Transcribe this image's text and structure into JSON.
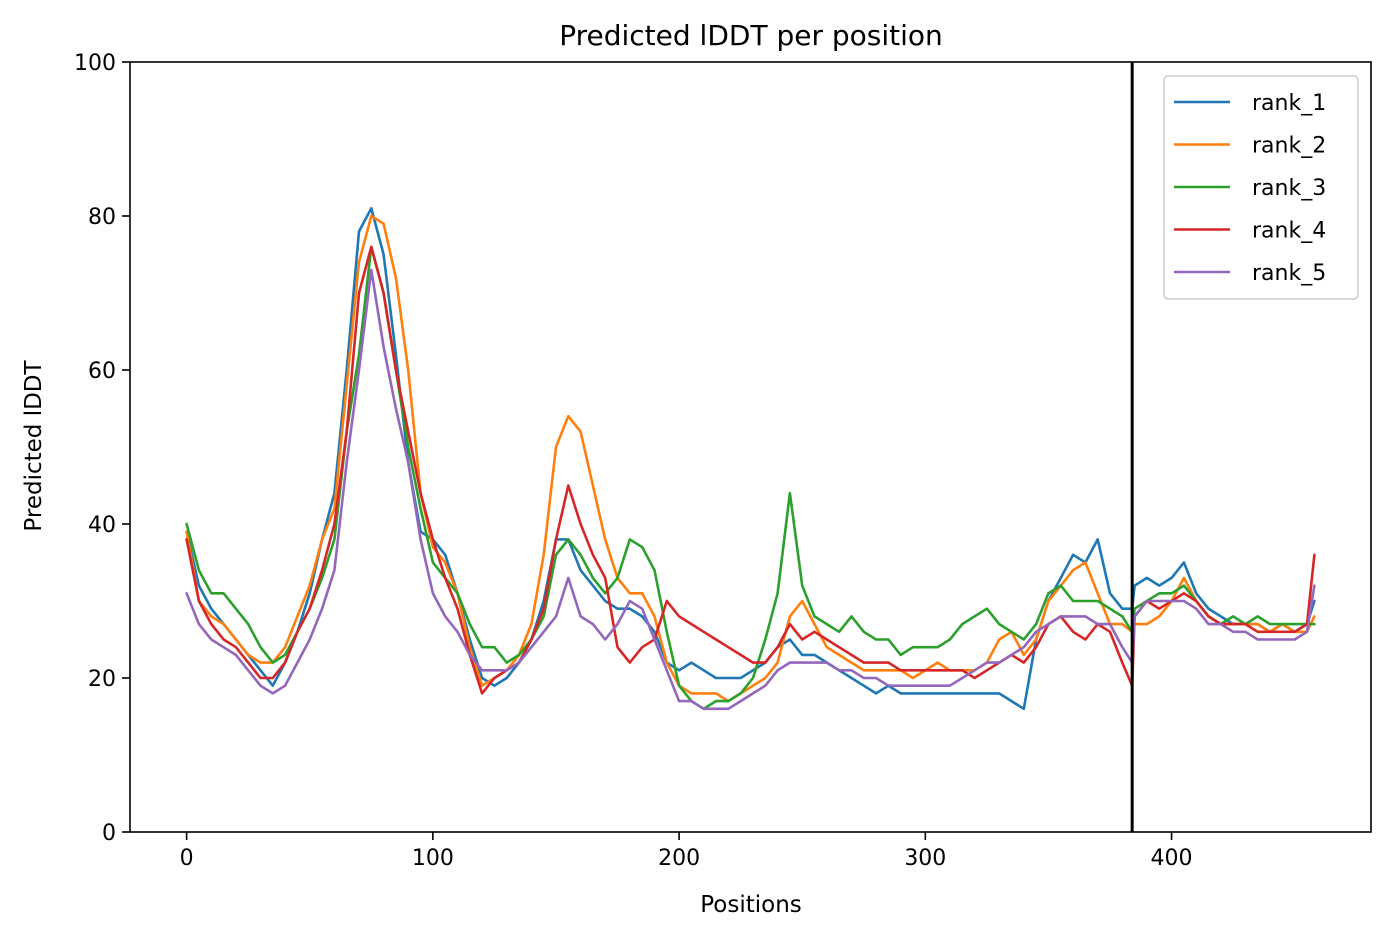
{
  "chart_data": {
    "type": "line",
    "title": "Predicted lDDT per position",
    "xlabel": "Positions",
    "ylabel": "Predicted lDDT",
    "xlim": [
      -23,
      481
    ],
    "ylim": [
      0,
      100
    ],
    "xticks": [
      0,
      100,
      200,
      300,
      400
    ],
    "yticks": [
      0,
      20,
      40,
      60,
      80,
      100
    ],
    "grid": false,
    "legend_position": "top-right",
    "vertical_line": {
      "x": 384,
      "color": "#000000"
    },
    "series": [
      {
        "name": "rank_1",
        "color": "#1f77b4",
        "x": [
          0,
          5,
          10,
          15,
          20,
          25,
          30,
          35,
          40,
          45,
          50,
          55,
          60,
          65,
          70,
          75,
          80,
          85,
          90,
          95,
          100,
          105,
          110,
          115,
          120,
          125,
          130,
          135,
          140,
          145,
          150,
          155,
          160,
          165,
          170,
          175,
          180,
          185,
          190,
          195,
          200,
          205,
          210,
          215,
          220,
          225,
          230,
          235,
          240,
          245,
          250,
          255,
          260,
          265,
          270,
          275,
          280,
          285,
          290,
          295,
          300,
          305,
          310,
          315,
          320,
          325,
          330,
          335,
          340,
          345,
          350,
          355,
          360,
          365,
          370,
          375,
          380,
          384,
          385,
          390,
          395,
          400,
          405,
          410,
          415,
          420,
          425,
          430,
          435,
          440,
          445,
          450,
          455,
          458
        ],
        "y": [
          39,
          32,
          29,
          27,
          25,
          23,
          21,
          19,
          22,
          26,
          31,
          38,
          44,
          60,
          78,
          81,
          75,
          62,
          48,
          39,
          38,
          36,
          31,
          25,
          20,
          19,
          20,
          22,
          25,
          30,
          38,
          38,
          34,
          32,
          30,
          29,
          29,
          28,
          26,
          22,
          21,
          22,
          21,
          20,
          20,
          20,
          21,
          22,
          24,
          25,
          23,
          23,
          22,
          21,
          20,
          19,
          18,
          19,
          18,
          18,
          18,
          18,
          18,
          18,
          18,
          18,
          18,
          17,
          16,
          25,
          30,
          33,
          36,
          35,
          38,
          31,
          29,
          29,
          32,
          33,
          32,
          33,
          35,
          31,
          29,
          28,
          27,
          27,
          27,
          26,
          27,
          26,
          27,
          30
        ]
      },
      {
        "name": "rank_2",
        "color": "#ff7f0e",
        "x": [
          0,
          5,
          10,
          15,
          20,
          25,
          30,
          35,
          40,
          45,
          50,
          55,
          60,
          65,
          70,
          75,
          80,
          85,
          90,
          95,
          100,
          105,
          110,
          115,
          120,
          125,
          130,
          135,
          140,
          145,
          150,
          155,
          160,
          165,
          170,
          175,
          180,
          185,
          190,
          195,
          200,
          205,
          210,
          215,
          220,
          225,
          230,
          235,
          240,
          245,
          250,
          255,
          260,
          265,
          270,
          275,
          280,
          285,
          290,
          295,
          300,
          305,
          310,
          315,
          320,
          325,
          330,
          335,
          340,
          345,
          350,
          355,
          360,
          365,
          370,
          375,
          380,
          384,
          385,
          390,
          395,
          400,
          405,
          410,
          415,
          420,
          425,
          430,
          435,
          440,
          445,
          450,
          455,
          458
        ],
        "y": [
          39,
          30,
          28,
          27,
          25,
          23,
          22,
          22,
          24,
          28,
          32,
          38,
          42,
          58,
          74,
          80,
          79,
          72,
          60,
          44,
          37,
          35,
          31,
          24,
          19,
          20,
          21,
          23,
          27,
          36,
          50,
          54,
          52,
          45,
          38,
          33,
          31,
          31,
          28,
          22,
          19,
          18,
          18,
          18,
          17,
          18,
          19,
          20,
          22,
          28,
          30,
          27,
          24,
          23,
          22,
          21,
          21,
          21,
          21,
          20,
          21,
          22,
          21,
          21,
          21,
          22,
          25,
          26,
          23,
          25,
          30,
          32,
          34,
          35,
          31,
          27,
          27,
          26,
          27,
          27,
          28,
          30,
          33,
          30,
          28,
          27,
          27,
          27,
          27,
          26,
          27,
          26,
          26,
          28
        ]
      },
      {
        "name": "rank_3",
        "color": "#2ca02c",
        "x": [
          0,
          5,
          10,
          15,
          20,
          25,
          30,
          35,
          40,
          45,
          50,
          55,
          60,
          65,
          70,
          75,
          80,
          85,
          90,
          95,
          100,
          105,
          110,
          115,
          120,
          125,
          130,
          135,
          140,
          145,
          150,
          155,
          160,
          165,
          170,
          175,
          180,
          185,
          190,
          195,
          200,
          205,
          210,
          215,
          220,
          225,
          230,
          235,
          240,
          245,
          250,
          255,
          260,
          265,
          270,
          275,
          280,
          285,
          290,
          295,
          300,
          305,
          310,
          315,
          320,
          325,
          330,
          335,
          340,
          345,
          350,
          355,
          360,
          365,
          370,
          375,
          380,
          384,
          385,
          390,
          395,
          400,
          405,
          410,
          415,
          420,
          425,
          430,
          435,
          440,
          445,
          450,
          455,
          458
        ],
        "y": [
          40,
          34,
          31,
          31,
          29,
          27,
          24,
          22,
          23,
          26,
          29,
          33,
          38,
          52,
          62,
          76,
          70,
          60,
          50,
          42,
          35,
          33,
          31,
          27,
          24,
          24,
          22,
          23,
          25,
          28,
          36,
          38,
          36,
          33,
          31,
          33,
          38,
          37,
          34,
          26,
          19,
          17,
          16,
          17,
          17,
          18,
          20,
          25,
          31,
          44,
          32,
          28,
          27,
          26,
          28,
          26,
          25,
          25,
          23,
          24,
          24,
          24,
          25,
          27,
          28,
          29,
          27,
          26,
          25,
          27,
          31,
          32,
          30,
          30,
          30,
          29,
          28,
          26,
          29,
          30,
          31,
          31,
          32,
          30,
          28,
          27,
          28,
          27,
          28,
          27,
          27,
          27,
          27,
          27
        ]
      },
      {
        "name": "rank_4",
        "color": "#d62728",
        "x": [
          0,
          5,
          10,
          15,
          20,
          25,
          30,
          35,
          40,
          45,
          50,
          55,
          60,
          65,
          70,
          75,
          80,
          85,
          90,
          95,
          100,
          105,
          110,
          115,
          120,
          125,
          130,
          135,
          140,
          145,
          150,
          155,
          160,
          165,
          170,
          175,
          180,
          185,
          190,
          195,
          200,
          205,
          210,
          215,
          220,
          225,
          230,
          235,
          240,
          245,
          250,
          255,
          260,
          265,
          270,
          275,
          280,
          285,
          290,
          295,
          300,
          305,
          310,
          315,
          320,
          325,
          330,
          335,
          340,
          345,
          350,
          355,
          360,
          365,
          370,
          375,
          380,
          384,
          385,
          390,
          395,
          400,
          405,
          410,
          415,
          420,
          425,
          430,
          435,
          440,
          445,
          450,
          455,
          458
        ],
        "y": [
          38,
          30,
          27,
          25,
          24,
          22,
          20,
          20,
          22,
          26,
          29,
          34,
          40,
          52,
          70,
          76,
          70,
          60,
          52,
          44,
          38,
          33,
          29,
          23,
          18,
          20,
          21,
          22,
          25,
          29,
          38,
          45,
          40,
          36,
          33,
          24,
          22,
          24,
          25,
          30,
          28,
          27,
          26,
          25,
          24,
          23,
          22,
          22,
          24,
          27,
          25,
          26,
          25,
          24,
          23,
          22,
          22,
          22,
          21,
          21,
          21,
          21,
          21,
          21,
          20,
          21,
          22,
          23,
          22,
          24,
          27,
          28,
          26,
          25,
          27,
          26,
          22,
          19,
          28,
          30,
          29,
          30,
          31,
          30,
          28,
          27,
          27,
          27,
          26,
          26,
          26,
          26,
          27,
          36
        ]
      },
      {
        "name": "rank_5",
        "color": "#9467bd",
        "x": [
          0,
          5,
          10,
          15,
          20,
          25,
          30,
          35,
          40,
          45,
          50,
          55,
          60,
          65,
          70,
          75,
          80,
          85,
          90,
          95,
          100,
          105,
          110,
          115,
          120,
          125,
          130,
          135,
          140,
          145,
          150,
          155,
          160,
          165,
          170,
          175,
          180,
          185,
          190,
          195,
          200,
          205,
          210,
          215,
          220,
          225,
          230,
          235,
          240,
          245,
          250,
          255,
          260,
          265,
          270,
          275,
          280,
          285,
          290,
          295,
          300,
          305,
          310,
          315,
          320,
          325,
          330,
          335,
          340,
          345,
          350,
          355,
          360,
          365,
          370,
          375,
          380,
          384,
          385,
          390,
          395,
          400,
          405,
          410,
          415,
          420,
          425,
          430,
          435,
          440,
          445,
          450,
          455,
          458
        ],
        "y": [
          31,
          27,
          25,
          24,
          23,
          21,
          19,
          18,
          19,
          22,
          25,
          29,
          34,
          48,
          60,
          73,
          63,
          55,
          48,
          38,
          31,
          28,
          26,
          23,
          21,
          21,
          21,
          22,
          24,
          26,
          28,
          33,
          28,
          27,
          25,
          27,
          30,
          29,
          25,
          21,
          17,
          17,
          16,
          16,
          16,
          17,
          18,
          19,
          21,
          22,
          22,
          22,
          22,
          21,
          21,
          20,
          20,
          19,
          19,
          19,
          19,
          19,
          19,
          20,
          21,
          22,
          22,
          23,
          24,
          26,
          27,
          28,
          28,
          28,
          27,
          27,
          24,
          22,
          28,
          30,
          30,
          30,
          30,
          29,
          27,
          27,
          26,
          26,
          25,
          25,
          25,
          25,
          26,
          32
        ]
      }
    ]
  }
}
